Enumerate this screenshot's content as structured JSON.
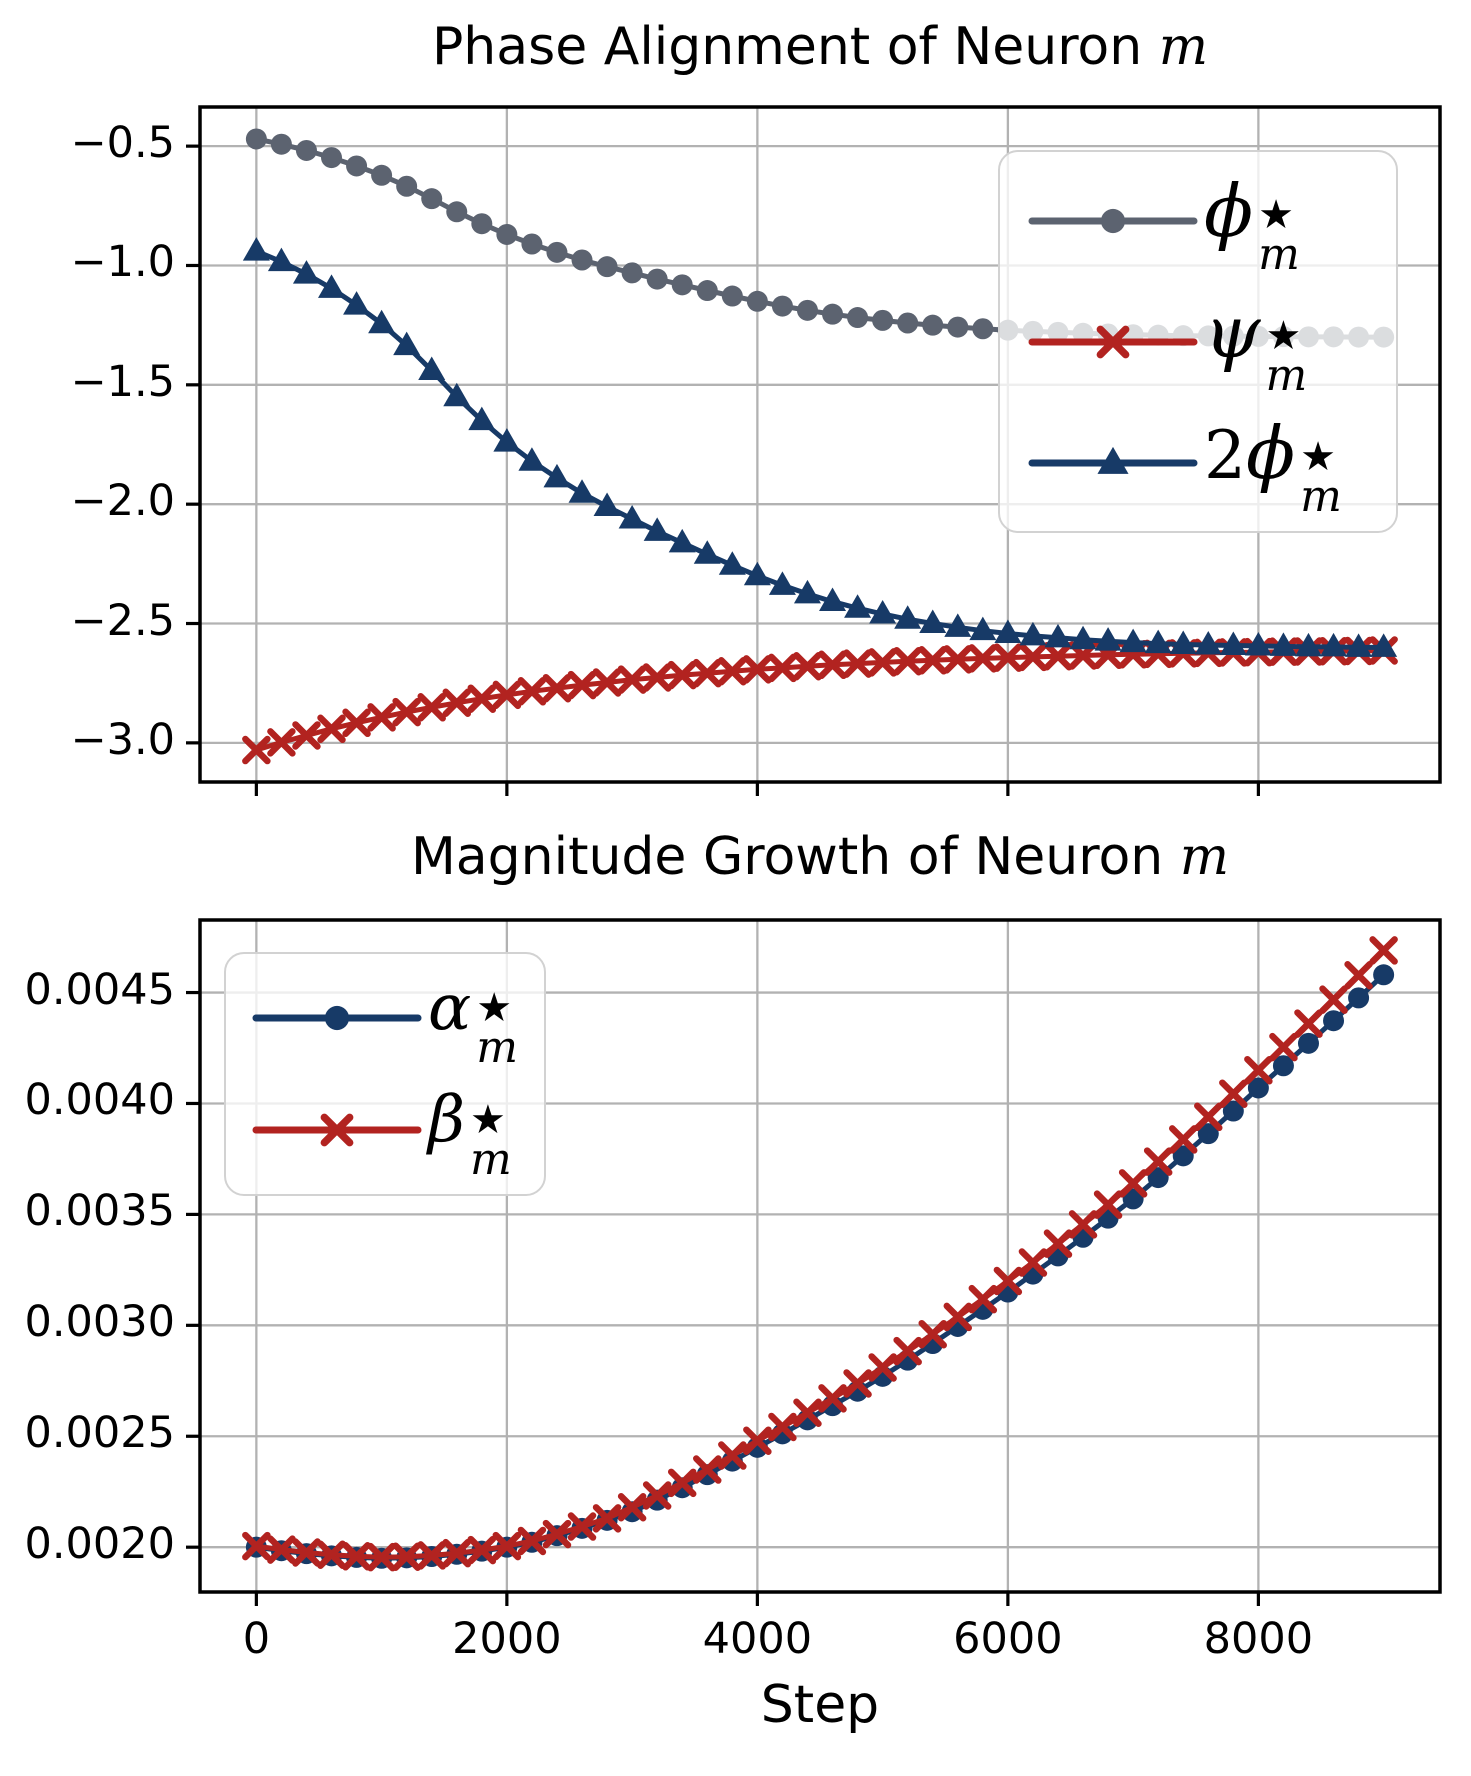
{
  "style": {
    "background": "#ffffff",
    "grid_color": "#b2b2b2",
    "spine_color": "#000000",
    "tick_color": "#000000",
    "gray": "#5c6370",
    "red": "#b22320",
    "navy": "#173a67"
  },
  "chart_data": [
    {
      "type": "line",
      "title": {
        "text": "Phase Alignment of Neuron ",
        "math": "m"
      },
      "xlabel": "",
      "ylabel": "",
      "grid": true,
      "legend_position": "upper right",
      "xlim": [
        -450,
        9450
      ],
      "ylim": [
        -3.164,
        -0.336
      ],
      "xticks": [
        0,
        2000,
        4000,
        6000,
        8000
      ],
      "xticklabels": [],
      "yticks": [
        -0.5,
        -1.0,
        -1.5,
        -2.0,
        -2.5,
        -3.0
      ],
      "yticklabels": [
        "−0.5",
        "−1.0",
        "−1.5",
        "−2.0",
        "−2.5",
        "−3.0"
      ],
      "x": [
        0,
        200,
        400,
        600,
        800,
        1000,
        1200,
        1400,
        1600,
        1800,
        2000,
        2200,
        2400,
        2600,
        2800,
        3000,
        3200,
        3400,
        3600,
        3800,
        4000,
        4200,
        4400,
        4600,
        4800,
        5000,
        5200,
        5400,
        5600,
        5800,
        6000,
        6200,
        6400,
        6600,
        6800,
        7000,
        7200,
        7400,
        7600,
        7800,
        8000,
        8200,
        8400,
        8600,
        8800,
        9000
      ],
      "series": [
        {
          "name": "phi_star_m",
          "color": "#5c6370",
          "marker": "circle",
          "legend": {
            "prefix": "",
            "base": "ϕ",
            "sup": "★",
            "sub": "m"
          },
          "y": [
            -0.47,
            -0.492,
            -0.518,
            -0.548,
            -0.583,
            -0.622,
            -0.668,
            -0.72,
            -0.775,
            -0.825,
            -0.87,
            -0.91,
            -0.945,
            -0.977,
            -1.005,
            -1.031,
            -1.057,
            -1.081,
            -1.105,
            -1.128,
            -1.15,
            -1.17,
            -1.188,
            -1.204,
            -1.218,
            -1.23,
            -1.241,
            -1.25,
            -1.258,
            -1.265,
            -1.271,
            -1.276,
            -1.28,
            -1.284,
            -1.287,
            -1.29,
            -1.292,
            -1.294,
            -1.295,
            -1.296,
            -1.297,
            -1.298,
            -1.299,
            -1.299,
            -1.3,
            -1.3
          ]
        },
        {
          "name": "psi_star_m",
          "color": "#b22320",
          "marker": "x",
          "legend": {
            "prefix": "",
            "base": "ψ",
            "sup": "★",
            "sub": "m"
          },
          "y": [
            -3.03,
            -2.998,
            -2.969,
            -2.941,
            -2.916,
            -2.893,
            -2.871,
            -2.851,
            -2.832,
            -2.815,
            -2.799,
            -2.784,
            -2.771,
            -2.758,
            -2.747,
            -2.735,
            -2.726,
            -2.716,
            -2.708,
            -2.7,
            -2.692,
            -2.686,
            -2.679,
            -2.673,
            -2.668,
            -2.663,
            -2.658,
            -2.654,
            -2.65,
            -2.646,
            -2.643,
            -2.64,
            -2.637,
            -2.634,
            -2.631,
            -2.629,
            -2.627,
            -2.625,
            -2.623,
            -2.621,
            -2.62,
            -2.618,
            -2.617,
            -2.616,
            -2.615,
            -2.613
          ]
        },
        {
          "name": "two_phi_star_m",
          "color": "#173a67",
          "marker": "triangle",
          "legend": {
            "prefix": "2",
            "base": "ϕ",
            "sup": "★",
            "sub": "m"
          },
          "y": [
            -0.94,
            -0.984,
            -1.036,
            -1.096,
            -1.166,
            -1.244,
            -1.336,
            -1.44,
            -1.55,
            -1.65,
            -1.74,
            -1.82,
            -1.89,
            -1.954,
            -2.01,
            -2.062,
            -2.114,
            -2.162,
            -2.21,
            -2.256,
            -2.3,
            -2.34,
            -2.376,
            -2.408,
            -2.436,
            -2.46,
            -2.482,
            -2.5,
            -2.516,
            -2.53,
            -2.542,
            -2.552,
            -2.56,
            -2.568,
            -2.574,
            -2.58,
            -2.584,
            -2.588,
            -2.59,
            -2.592,
            -2.594,
            -2.596,
            -2.598,
            -2.598,
            -2.6,
            -2.6
          ]
        }
      ]
    },
    {
      "type": "line",
      "title": {
        "text": "Magnitude Growth of Neuron ",
        "math": "m"
      },
      "xlabel": "Step",
      "ylabel": "",
      "grid": true,
      "legend_position": "upper left",
      "xlim": [
        -450,
        9450
      ],
      "ylim": [
        0.001798,
        0.004827
      ],
      "xticks": [
        0,
        2000,
        4000,
        6000,
        8000
      ],
      "xticklabels": [
        "0",
        "2000",
        "4000",
        "6000",
        "8000"
      ],
      "yticks": [
        0.002,
        0.0025,
        0.003,
        0.0035,
        0.004,
        0.0045
      ],
      "yticklabels": [
        "0.0020",
        "0.0025",
        "0.0030",
        "0.0035",
        "0.0040",
        "0.0045"
      ],
      "x": [
        0,
        200,
        400,
        600,
        800,
        1000,
        1200,
        1400,
        1600,
        1800,
        2000,
        2200,
        2400,
        2600,
        2800,
        3000,
        3200,
        3400,
        3600,
        3800,
        4000,
        4200,
        4400,
        4600,
        4800,
        5000,
        5200,
        5400,
        5600,
        5800,
        6000,
        6200,
        6400,
        6600,
        6800,
        7000,
        7200,
        7400,
        7600,
        7800,
        8000,
        8200,
        8400,
        8600,
        8800,
        9000
      ],
      "series": [
        {
          "name": "alpha_star_m",
          "color": "#173a67",
          "marker": "circle",
          "legend": {
            "prefix": "",
            "base": "α",
            "sup": "★",
            "sub": "m"
          },
          "y": [
            0.002,
            0.001984,
            0.001971,
            0.001961,
            0.001954,
            0.00195,
            0.001952,
            0.001958,
            0.001968,
            0.001982,
            0.002,
            0.002022,
            0.002052,
            0.002085,
            0.002121,
            0.00216,
            0.002212,
            0.002268,
            0.002327,
            0.002388,
            0.00245,
            0.002511,
            0.002574,
            0.002638,
            0.002703,
            0.00277,
            0.002843,
            0.002918,
            0.002995,
            0.003072,
            0.00315,
            0.003231,
            0.003313,
            0.003397,
            0.003483,
            0.00357,
            0.003666,
            0.003764,
            0.003864,
            0.003966,
            0.00407,
            0.00417,
            0.004271,
            0.004373,
            0.004476,
            0.00458
          ]
        },
        {
          "name": "beta_star_m",
          "color": "#b22320",
          "marker": "x",
          "legend": {
            "prefix": "",
            "base": "β",
            "sup": "★",
            "sub": "m"
          },
          "y": [
            0.002005,
            0.001989,
            0.001976,
            0.001966,
            0.001959,
            0.001955,
            0.001957,
            0.001963,
            0.001973,
            0.001987,
            0.002005,
            0.002028,
            0.002059,
            0.002093,
            0.00213,
            0.00218,
            0.002233,
            0.00229,
            0.00235,
            0.002413,
            0.00248,
            0.002542,
            0.002606,
            0.002671,
            0.002738,
            0.00281,
            0.002884,
            0.00296,
            0.003038,
            0.003118,
            0.0032,
            0.003283,
            0.003368,
            0.003455,
            0.003544,
            0.00364,
            0.003738,
            0.003838,
            0.00394,
            0.004044,
            0.00415,
            0.004254,
            0.00436,
            0.004468,
            0.004578,
            0.00469
          ]
        }
      ]
    }
  ]
}
